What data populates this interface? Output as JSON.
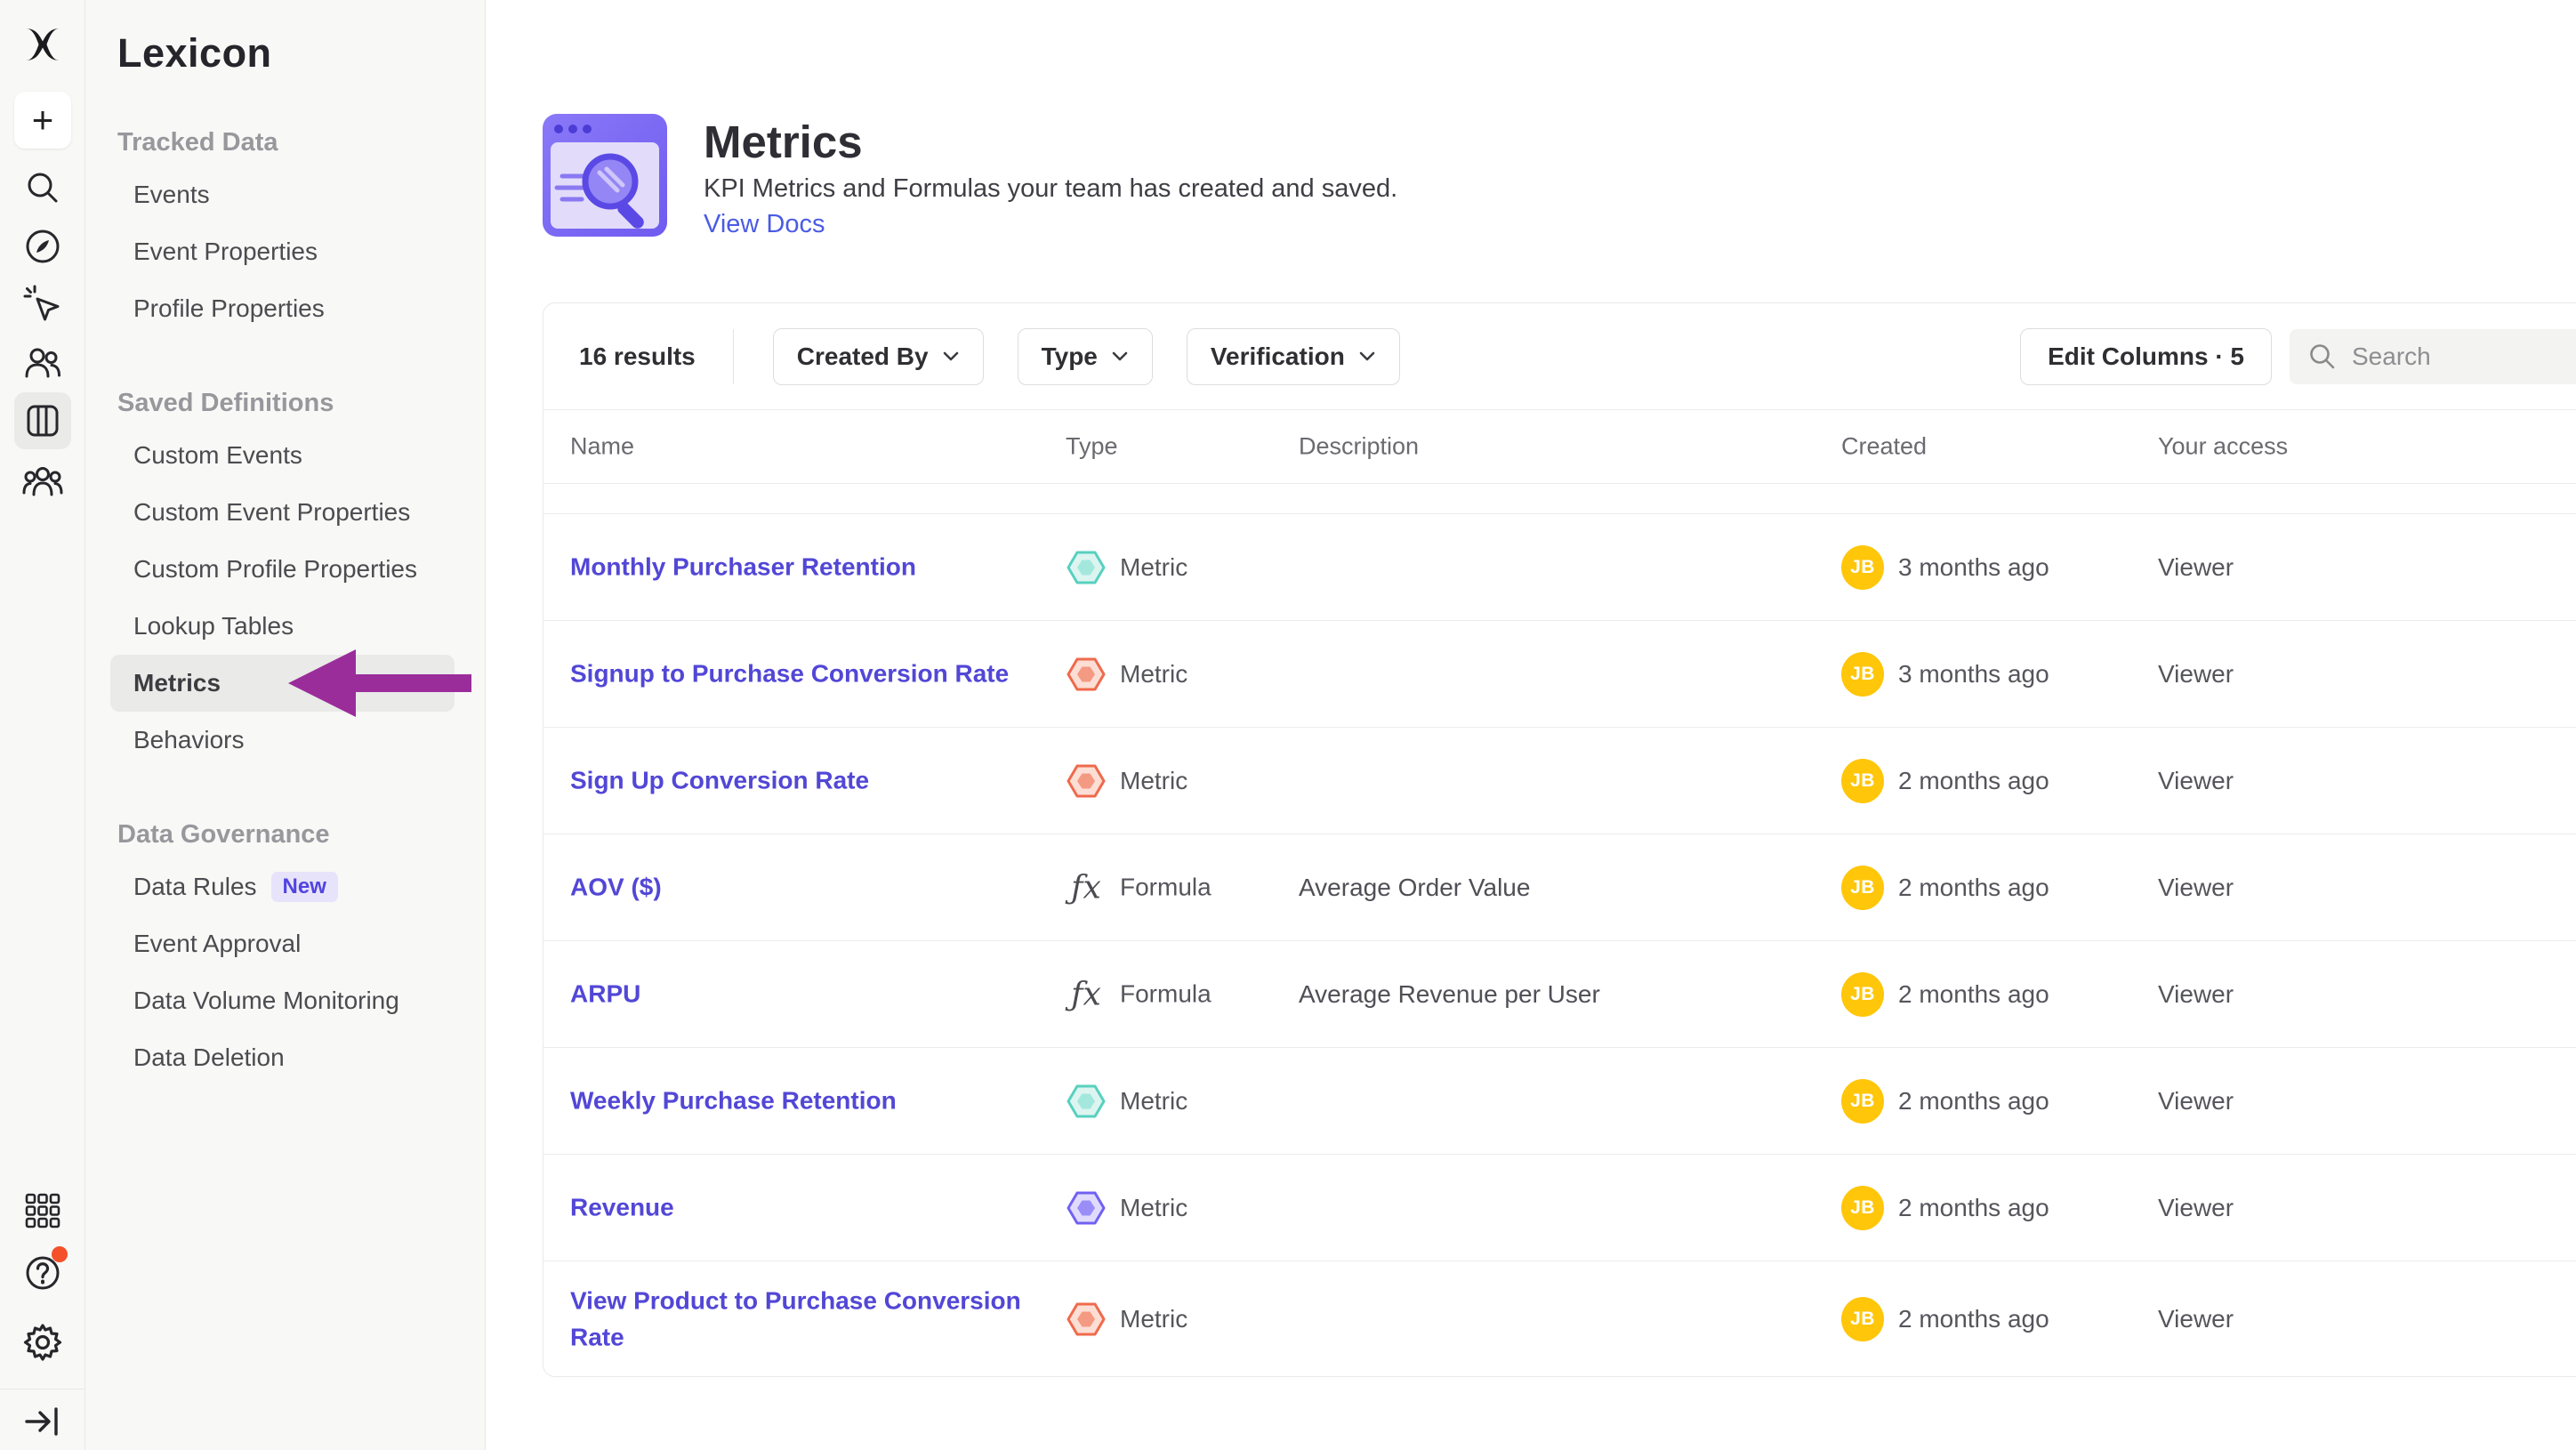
{
  "sidebar": {
    "title": "Lexicon",
    "sections": [
      {
        "header": "Tracked Data",
        "items": [
          {
            "label": "Events"
          },
          {
            "label": "Event Properties"
          },
          {
            "label": "Profile Properties"
          }
        ]
      },
      {
        "header": "Saved Definitions",
        "items": [
          {
            "label": "Custom Events"
          },
          {
            "label": "Custom Event Properties"
          },
          {
            "label": "Custom Profile Properties"
          },
          {
            "label": "Lookup Tables"
          },
          {
            "label": "Metrics",
            "active": true
          },
          {
            "label": "Behaviors"
          }
        ]
      },
      {
        "header": "Data Governance",
        "items": [
          {
            "label": "Data Rules",
            "badge": "New"
          },
          {
            "label": "Event Approval"
          },
          {
            "label": "Data Volume Monitoring"
          },
          {
            "label": "Data Deletion"
          }
        ]
      }
    ]
  },
  "icon_rail": {
    "items": [
      "mixpanel-logo",
      "create-plus",
      "search",
      "compass",
      "event-cursor",
      "users",
      "data-catalog",
      "cohorts",
      "apps-grid",
      "help",
      "settings",
      "collapse-sidebar"
    ],
    "active_item": "data-catalog",
    "help_notification_dot_color": "#f4502a"
  },
  "header": {
    "title": "Metrics",
    "subtitle": "KPI Metrics and Formulas your team has created and saved.",
    "link": "View Docs"
  },
  "toolbar": {
    "results": "16 results",
    "filters": [
      "Created By",
      "Type",
      "Verification"
    ],
    "edit_columns": "Edit Columns · 5",
    "search_placeholder": "Search"
  },
  "table": {
    "columns": [
      "Name",
      "Type",
      "Description",
      "Created",
      "Your access"
    ],
    "rows": [
      {
        "name": "Monthly Purchaser Retention",
        "type": "Metric",
        "type_icon": "hexagon-teal",
        "description": "",
        "avatar": "JB",
        "created": "3 months ago",
        "access": "Viewer"
      },
      {
        "name": "Signup to Purchase Conversion Rate",
        "type": "Metric",
        "type_icon": "hexagon-orange",
        "description": "",
        "avatar": "JB",
        "created": "3 months ago",
        "access": "Viewer"
      },
      {
        "name": "Sign Up Conversion Rate",
        "type": "Metric",
        "type_icon": "hexagon-orange",
        "description": "",
        "avatar": "JB",
        "created": "2 months ago",
        "access": "Viewer"
      },
      {
        "name": "AOV ($)",
        "type": "Formula",
        "type_icon": "formula-fx",
        "description": "Average Order Value",
        "avatar": "JB",
        "created": "2 months ago",
        "access": "Viewer"
      },
      {
        "name": "ARPU",
        "type": "Formula",
        "type_icon": "formula-fx",
        "description": "Average Revenue per User",
        "avatar": "JB",
        "created": "2 months ago",
        "access": "Viewer"
      },
      {
        "name": "Weekly Purchase Retention",
        "type": "Metric",
        "type_icon": "hexagon-teal",
        "description": "",
        "avatar": "JB",
        "created": "2 months ago",
        "access": "Viewer"
      },
      {
        "name": "Revenue",
        "type": "Metric",
        "type_icon": "hexagon-purple",
        "description": "",
        "avatar": "JB",
        "created": "2 months ago",
        "access": "Viewer"
      },
      {
        "name": "View Product to Purchase Conversion Rate",
        "type": "Metric",
        "type_icon": "hexagon-orange",
        "description": "",
        "avatar": "JB",
        "created": "2 months ago",
        "access": "Viewer"
      }
    ]
  },
  "annotation": {
    "type": "arrow-pointing-left",
    "target": "Metrics",
    "color": "#9a2d9a"
  },
  "colors": {
    "accent_purple": "#5247d6",
    "link_blue": "#4a5be4",
    "avatar_yellow": "#ffc60a",
    "hexagon_teal": "#58d0bf",
    "hexagon_orange": "#ef6a4c",
    "hexagon_purple": "#7161f2",
    "badge_purple": "#5244e0",
    "sidebar_bg": "#f8f8f6"
  }
}
